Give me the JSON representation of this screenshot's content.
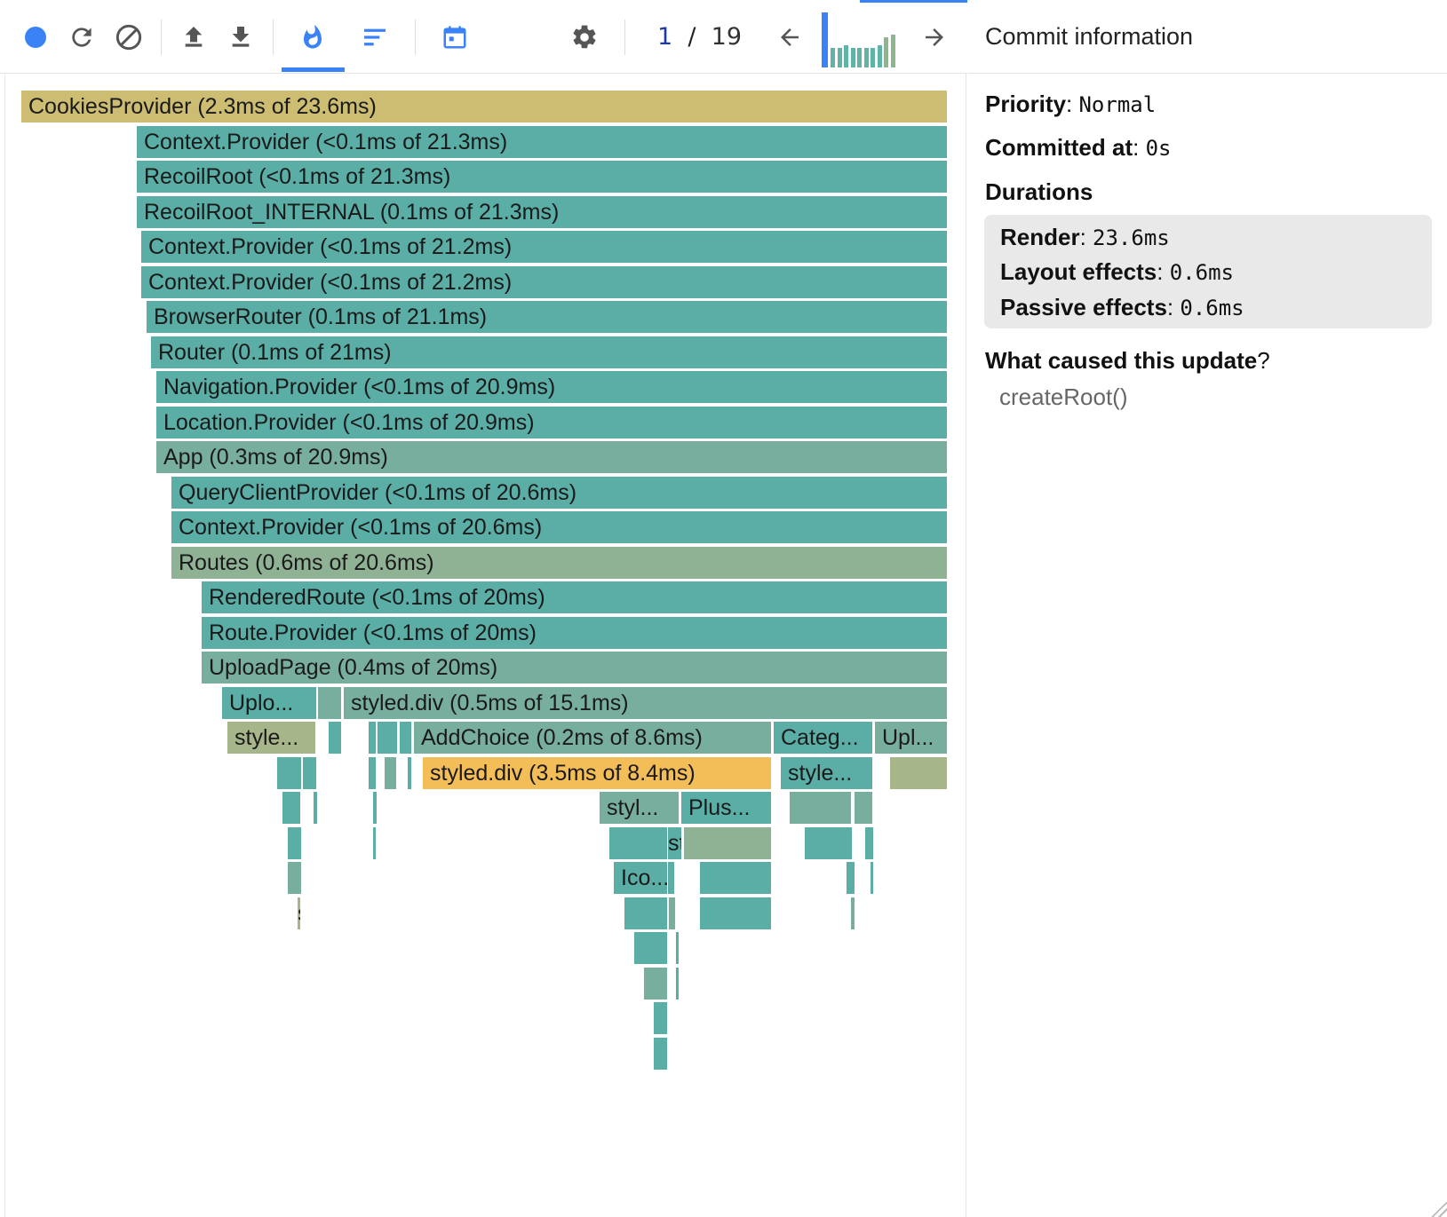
{
  "toolbar": {
    "buttons": [
      "record-icon",
      "reload-icon",
      "clear-icon",
      "upload-icon",
      "download-icon",
      "flame-icon",
      "ranked-icon",
      "timeline-icon",
      "settings-icon"
    ],
    "commit_current": "1",
    "commit_separator": "/",
    "commit_total": "19",
    "commit_bar_levels": [
      1.0,
      0.35,
      0.35,
      0.4,
      0.35,
      0.35,
      0.35,
      0.35,
      0.4,
      0.55,
      0.6
    ]
  },
  "colors": {
    "accent": "#3b82f6",
    "teal": "#5aaea6",
    "teal_green": "#78ae9e",
    "sage": "#8fb294",
    "olive": "#a6b68a",
    "khaki": "#ccbd72",
    "gold": "#f3bd57"
  },
  "flamegraph": {
    "nodes": [
      {
        "label": "CookiesProvider (2.3ms of 23.6ms)",
        "color": "khaki"
      },
      {
        "label": "Context.Provider (<0.1ms of 21.3ms)",
        "color": "teal"
      },
      {
        "label": "RecoilRoot (<0.1ms of 21.3ms)",
        "color": "teal"
      },
      {
        "label": "RecoilRoot_INTERNAL (0.1ms of 21.3ms)",
        "color": "teal"
      },
      {
        "label": "Context.Provider (<0.1ms of 21.2ms)",
        "color": "teal"
      },
      {
        "label": "Context.Provider (<0.1ms of 21.2ms)",
        "color": "teal"
      },
      {
        "label": "BrowserRouter (0.1ms of 21.1ms)",
        "color": "teal"
      },
      {
        "label": "Router (0.1ms of 21ms)",
        "color": "teal"
      },
      {
        "label": "Navigation.Provider (<0.1ms of 20.9ms)",
        "color": "teal"
      },
      {
        "label": "Location.Provider (<0.1ms of 20.9ms)",
        "color": "teal"
      },
      {
        "label": "App (0.3ms of 20.9ms)",
        "color": "teal_green"
      },
      {
        "label": "QueryClientProvider (<0.1ms of 20.6ms)",
        "color": "teal"
      },
      {
        "label": "Context.Provider (<0.1ms of 20.6ms)",
        "color": "teal"
      },
      {
        "label": "Routes (0.6ms of 20.6ms)",
        "color": "sage"
      },
      {
        "label": "RenderedRoute (<0.1ms of 20ms)",
        "color": "teal"
      },
      {
        "label": "Route.Provider (<0.1ms of 20ms)",
        "color": "teal"
      },
      {
        "label": "UploadPage (0.4ms of 20ms)",
        "color": "teal_green"
      },
      {
        "label": "Uplo...",
        "color": "teal"
      },
      {
        "label": "",
        "color": "teal_green"
      },
      {
        "label": "styled.div (0.5ms of 15.1ms)",
        "color": "teal_green"
      },
      {
        "label": "style...",
        "color": "olive"
      },
      {
        "label": "",
        "color": "teal"
      },
      {
        "label": "",
        "color": "teal"
      },
      {
        "label": "",
        "color": "teal"
      },
      {
        "label": "",
        "color": "teal"
      },
      {
        "label": "AddChoice (0.2ms of 8.6ms)",
        "color": "teal_green"
      },
      {
        "label": "Categ...",
        "color": "teal"
      },
      {
        "label": "Upl...",
        "color": "teal_green"
      },
      {
        "label": "",
        "color": "teal"
      },
      {
        "label": "",
        "color": "teal"
      },
      {
        "label": "",
        "color": "teal"
      },
      {
        "label": "",
        "color": "teal_green"
      },
      {
        "label": "",
        "color": "teal"
      },
      {
        "label": "styled.div (3.5ms of 8.4ms)",
        "color": "gold"
      },
      {
        "label": "style...",
        "color": "teal"
      },
      {
        "label": "",
        "color": "olive"
      },
      {
        "label": "",
        "color": "teal"
      },
      {
        "label": "",
        "color": "teal"
      },
      {
        "label": "",
        "color": "teal"
      },
      {
        "label": "styl...",
        "color": "teal_green"
      },
      {
        "label": "Plus...",
        "color": "teal"
      },
      {
        "label": "",
        "color": "teal_green"
      },
      {
        "label": "",
        "color": "teal_green"
      },
      {
        "label": "",
        "color": "teal"
      },
      {
        "label": "",
        "color": "teal"
      },
      {
        "label": "",
        "color": "teal"
      },
      {
        "label": "style...",
        "color": "teal"
      },
      {
        "label": "",
        "color": "sage"
      },
      {
        "label": "",
        "color": "teal"
      },
      {
        "label": "",
        "color": "teal"
      },
      {
        "label": "",
        "color": "teal_green"
      },
      {
        "label": "Ico...",
        "color": "teal"
      },
      {
        "label": "",
        "color": "teal"
      },
      {
        "label": "",
        "color": "teal"
      },
      {
        "label": "",
        "color": "teal"
      },
      {
        "label": "",
        "color": "teal"
      },
      {
        "label": "styl...",
        "color": "olive"
      },
      {
        "label": "",
        "color": "teal"
      },
      {
        "label": "",
        "color": "teal_green"
      },
      {
        "label": "",
        "color": "teal"
      },
      {
        "label": "",
        "color": "teal_green"
      },
      {
        "label": "",
        "color": "teal"
      },
      {
        "label": "",
        "color": "teal"
      },
      {
        "label": "",
        "color": "teal_green"
      },
      {
        "label": "",
        "color": "teal"
      },
      {
        "label": "",
        "color": "teal"
      },
      {
        "label": "",
        "color": "teal"
      }
    ]
  },
  "commit_info": {
    "title": "Commit information",
    "priority_label": "Priority",
    "priority_value": "Normal",
    "committed_label": "Committed at",
    "committed_value": "0s",
    "durations_heading": "Durations",
    "render_label": "Render",
    "render_value": "23.6ms",
    "layout_label": "Layout effects",
    "layout_value": "0.6ms",
    "passive_label": "Passive effects",
    "passive_value": "0.6ms",
    "cause_heading": "What caused this update",
    "cause_q": "?",
    "cause_value": "createRoot()"
  }
}
